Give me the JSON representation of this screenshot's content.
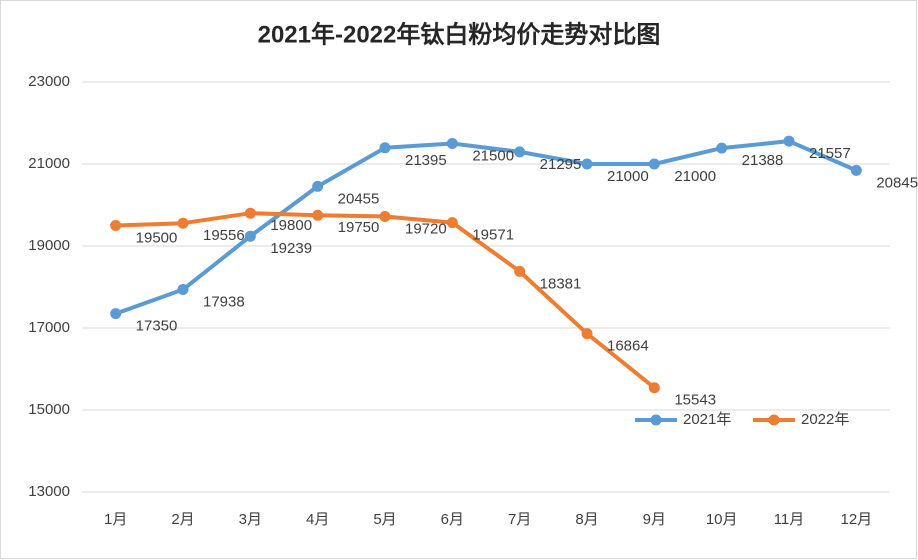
{
  "chart_data": {
    "type": "line",
    "title": "2021年-2022年钛白粉均价走势对比图",
    "categories": [
      "1月",
      "2月",
      "3月",
      "4月",
      "5月",
      "6月",
      "7月",
      "8月",
      "9月",
      "10月",
      "11月",
      "12月"
    ],
    "series": [
      {
        "name": "2021年",
        "color": "#5b9bd5",
        "values": [
          17350,
          17938,
          19239,
          20455,
          21395,
          21500,
          21295,
          21000,
          21000,
          21388,
          21557,
          20845
        ]
      },
      {
        "name": "2022年",
        "color": "#ed7d31",
        "values": [
          19500,
          19556,
          19800,
          19750,
          19720,
          19571,
          18381,
          16864,
          15543,
          null,
          null,
          null
        ]
      }
    ],
    "ylim": [
      13000,
      23000
    ],
    "yticks": [
      13000,
      15000,
      17000,
      19000,
      21000,
      23000
    ],
    "grid": true,
    "legend": "lower right"
  }
}
